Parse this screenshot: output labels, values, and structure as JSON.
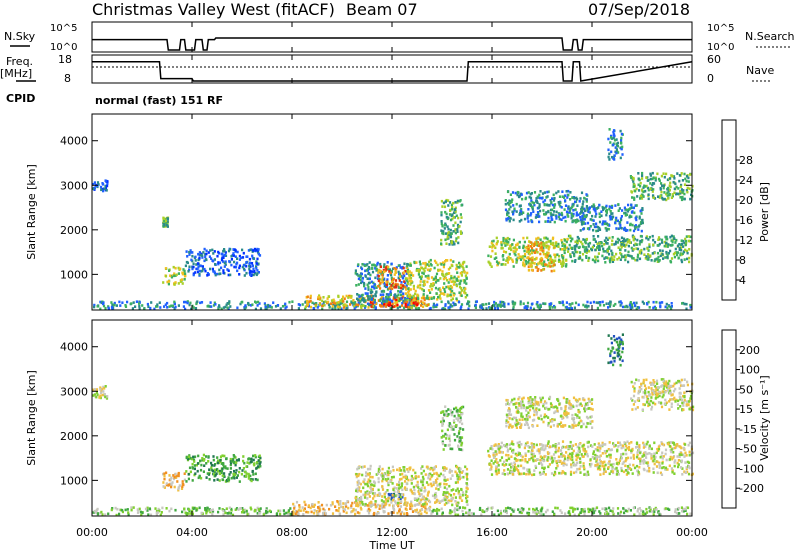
{
  "header": {
    "title": "Christmas Valley West (fitACF)",
    "beam": "Beam 07",
    "date": "07/Sep/2018"
  },
  "chart_data": [
    {
      "type": "line",
      "left_label": "N.Sky",
      "left_ticks": [
        "10^5",
        "10^0"
      ],
      "right_label": "N.Search",
      "right_ticks": [
        "10^5",
        "10^0"
      ],
      "series": [
        {
          "x": [
            0,
            3.0,
            3.05,
            3.5,
            3.55,
            3.7,
            3.75,
            4.1,
            4.15,
            4.4,
            4.45,
            4.6,
            4.65,
            4.9,
            4.95,
            18.8,
            18.85,
            19.2,
            19.25,
            19.4,
            19.45,
            19.6,
            19.65,
            24
          ],
          "y": [
            2,
            2,
            0,
            0,
            2,
            2,
            0,
            0,
            2,
            2,
            0,
            0,
            2,
            2,
            2.3,
            2.3,
            0,
            0,
            2,
            2,
            0,
            0,
            2,
            2
          ]
        }
      ]
    },
    {
      "type": "line",
      "left_label": "Freq.",
      "left_label2": "[MHz]",
      "left_ticks": [
        "18",
        "8"
      ],
      "right_label": "Nave",
      "right_ticks": [
        "60",
        "0"
      ],
      "series": [
        {
          "x": [
            0,
            2.7,
            2.75,
            4.0,
            4.05,
            15.0,
            15.05,
            18.8,
            18.85,
            19.2,
            19.25,
            19.5,
            19.55,
            24
          ],
          "y": [
            16,
            16,
            9,
            9,
            8,
            8,
            16,
            16,
            8,
            8,
            16,
            16,
            8,
            16
          ]
        },
        {
          "x": [
            0,
            24
          ],
          "y": [
            35,
            35
          ]
        }
      ]
    },
    {
      "type": "table",
      "label": "CPID",
      "value": "normal (fast) 151 RF"
    },
    {
      "type": "heatmap",
      "ylabel": "Slant Range [km]",
      "yticks": [
        "1000",
        "2000",
        "3000",
        "4000"
      ],
      "ylim": [
        200,
        4600
      ],
      "xlim": [
        0,
        24
      ],
      "colorbar": {
        "label": "Power [dB]",
        "ticks": [
          "4",
          "8",
          "12",
          "16",
          "20",
          "24",
          "28"
        ],
        "colors": [
          "#0030ff",
          "#2060ff",
          "#2a8a8a",
          "#3cb060",
          "#a8d028",
          "#f0c020",
          "#f08010",
          "#e03010",
          "#ff0000"
        ]
      },
      "regions": [
        {
          "x0": 0.0,
          "x1": 24.0,
          "y0": 250,
          "y1": 420,
          "level": 2
        },
        {
          "x0": 8.5,
          "x1": 13.5,
          "y0": 280,
          "y1": 550,
          "level": 5
        },
        {
          "x0": 11.0,
          "x1": 13.0,
          "y0": 300,
          "y1": 500,
          "level": 7
        },
        {
          "x0": 0.0,
          "x1": 0.6,
          "y0": 2900,
          "y1": 3150,
          "level": 1
        },
        {
          "x0": 2.8,
          "x1": 3.0,
          "y0": 2100,
          "y1": 2300,
          "level": 3
        },
        {
          "x0": 2.8,
          "x1": 3.7,
          "y0": 800,
          "y1": 1200,
          "level": 4
        },
        {
          "x0": 3.7,
          "x1": 6.7,
          "y0": 1000,
          "y1": 1600,
          "level": 1
        },
        {
          "x0": 10.5,
          "x1": 12.6,
          "y0": 400,
          "y1": 1300,
          "level": 2
        },
        {
          "x0": 11.4,
          "x1": 12.5,
          "y0": 700,
          "y1": 1200,
          "level": 6
        },
        {
          "x0": 12.5,
          "x1": 15.0,
          "y0": 450,
          "y1": 1350,
          "level": 4
        },
        {
          "x0": 13.9,
          "x1": 14.8,
          "y0": 1700,
          "y1": 2700,
          "level": 3
        },
        {
          "x0": 15.8,
          "x1": 19.0,
          "y0": 1200,
          "y1": 1850,
          "level": 4
        },
        {
          "x0": 17.4,
          "x1": 18.5,
          "y0": 1100,
          "y1": 1750,
          "level": 5
        },
        {
          "x0": 19.0,
          "x1": 24.0,
          "y0": 1300,
          "y1": 1900,
          "level": 3
        },
        {
          "x0": 16.5,
          "x1": 19.8,
          "y0": 2200,
          "y1": 2900,
          "level": 2
        },
        {
          "x0": 19.5,
          "x1": 22.0,
          "y0": 2000,
          "y1": 2600,
          "level": 2
        },
        {
          "x0": 21.5,
          "x1": 24.0,
          "y0": 2700,
          "y1": 3300,
          "level": 3
        },
        {
          "x0": 20.6,
          "x1": 21.2,
          "y0": 3600,
          "y1": 4300,
          "level": 2
        }
      ]
    },
    {
      "type": "heatmap",
      "ylabel": "Slant Range [km]",
      "yticks": [
        "1000",
        "2000",
        "3000",
        "4000"
      ],
      "ylim": [
        200,
        4600
      ],
      "xlim": [
        0,
        24
      ],
      "xticks": [
        "00:00",
        "04:00",
        "08:00",
        "12:00",
        "16:00",
        "20:00",
        "00:00"
      ],
      "xlabel": "Time UT",
      "colorbar": {
        "label": "Velocity [m s⁻¹]",
        "ticks": [
          "200",
          "100",
          "50",
          "15",
          "-15",
          "-50",
          "-100",
          "-200"
        ],
        "colors": [
          "#2050c0",
          "#207850",
          "#40a840",
          "#80d030",
          "#c8c8c0",
          "#f0c040",
          "#f09020",
          "#f05010",
          "#f00000"
        ]
      },
      "regions": [
        {
          "x0": 0.0,
          "x1": 8.0,
          "y0": 250,
          "y1": 420,
          "level": 3
        },
        {
          "x0": 8.0,
          "x1": 13.5,
          "y0": 260,
          "y1": 560,
          "level": 5
        },
        {
          "x0": 13.5,
          "x1": 24.0,
          "y0": 250,
          "y1": 420,
          "level": 3
        },
        {
          "x0": 11.8,
          "x1": 12.4,
          "y0": 600,
          "y1": 720,
          "level": 0
        },
        {
          "x0": 0.0,
          "x1": 0.6,
          "y0": 2850,
          "y1": 3150,
          "level": 4
        },
        {
          "x0": 2.8,
          "x1": 3.7,
          "y0": 800,
          "y1": 1200,
          "level": 5
        },
        {
          "x0": 3.7,
          "x1": 6.7,
          "y0": 1000,
          "y1": 1600,
          "level": 2
        },
        {
          "x0": 10.5,
          "x1": 15.0,
          "y0": 450,
          "y1": 1350,
          "level": 4
        },
        {
          "x0": 13.9,
          "x1": 14.8,
          "y0": 1700,
          "y1": 2700,
          "level": 3
        },
        {
          "x0": 15.8,
          "x1": 24.0,
          "y0": 1150,
          "y1": 1900,
          "level": 4
        },
        {
          "x0": 16.5,
          "x1": 20.0,
          "y0": 2200,
          "y1": 2900,
          "level": 4
        },
        {
          "x0": 21.5,
          "x1": 24.0,
          "y0": 2600,
          "y1": 3300,
          "level": 4
        },
        {
          "x0": 20.6,
          "x1": 21.2,
          "y0": 3600,
          "y1": 4300,
          "level": 1
        }
      ]
    }
  ]
}
